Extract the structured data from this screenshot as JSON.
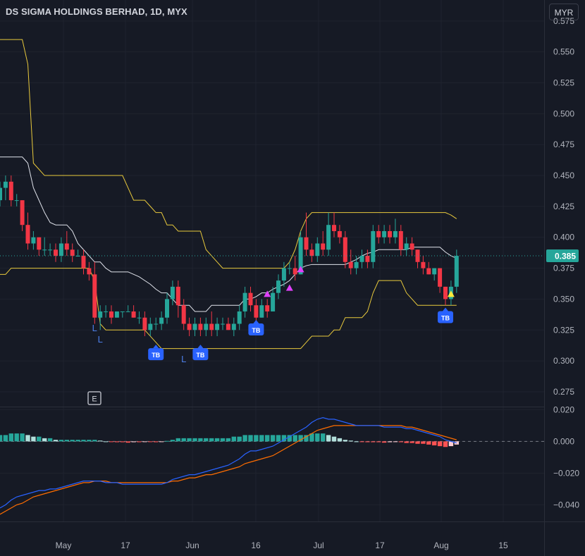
{
  "header": {
    "title": "DS SIGMA HOLDINGS BERHAD, 1D, MYX",
    "currency_label": "MYR"
  },
  "last_price": {
    "label": "0.385",
    "value": 0.385,
    "color": "#26a69a"
  },
  "earnings_marker": "E",
  "chart_data": [
    {
      "type": "candlestick",
      "title": "DS SIGMA HOLDINGS BERHAD, 1D, MYX",
      "x_tick_labels": [
        "May",
        "17",
        "Jun",
        "16",
        "Jul",
        "17",
        "Aug",
        "15"
      ],
      "y_ticks": [
        0.575,
        0.55,
        0.525,
        0.5,
        0.475,
        0.45,
        0.425,
        0.4,
        0.375,
        0.35,
        0.325,
        0.3,
        0.275
      ],
      "y_tick_labels": [
        "0.575",
        "0.550",
        "0.525",
        "0.500",
        "0.475",
        "0.450",
        "0.425",
        "0.400",
        "0.375",
        "0.350",
        "0.325",
        "0.300",
        "0.275"
      ],
      "ylim": [
        0.263,
        0.592
      ],
      "colors": {
        "up": "#26a69a",
        "down": "#f23645",
        "upper_band": "#e8c93c",
        "lower_band": "#e8c93c",
        "middle_line": "#e0e3eb"
      },
      "ohlc": [
        [
          0.43,
          0.445,
          0.425,
          0.44
        ],
        [
          0.44,
          0.45,
          0.43,
          0.445
        ],
        [
          0.445,
          0.45,
          0.425,
          0.43
        ],
        [
          0.43,
          0.435,
          0.425,
          0.43
        ],
        [
          0.43,
          0.43,
          0.405,
          0.41
        ],
        [
          0.41,
          0.42,
          0.39,
          0.395
        ],
        [
          0.395,
          0.405,
          0.39,
          0.4
        ],
        [
          0.4,
          0.4,
          0.385,
          0.39
        ],
        [
          0.39,
          0.4,
          0.385,
          0.39
        ],
        [
          0.39,
          0.395,
          0.385,
          0.39
        ],
        [
          0.39,
          0.395,
          0.38,
          0.385
        ],
        [
          0.385,
          0.4,
          0.38,
          0.395
        ],
        [
          0.395,
          0.405,
          0.385,
          0.39
        ],
        [
          0.39,
          0.395,
          0.38,
          0.385
        ],
        [
          0.385,
          0.39,
          0.385,
          0.385
        ],
        [
          0.385,
          0.39,
          0.37,
          0.375
        ],
        [
          0.375,
          0.38,
          0.365,
          0.37
        ],
        [
          0.37,
          0.38,
          0.33,
          0.335
        ],
        [
          0.335,
          0.345,
          0.325,
          0.34
        ],
        [
          0.34,
          0.345,
          0.335,
          0.34
        ],
        [
          0.34,
          0.345,
          0.33,
          0.335
        ],
        [
          0.335,
          0.34,
          0.335,
          0.34
        ],
        [
          0.34,
          0.34,
          0.335,
          0.34
        ],
        [
          0.34,
          0.345,
          0.34,
          0.34
        ],
        [
          0.34,
          0.345,
          0.335,
          0.335
        ],
        [
          0.335,
          0.34,
          0.33,
          0.335
        ],
        [
          0.335,
          0.34,
          0.32,
          0.325
        ],
        [
          0.325,
          0.335,
          0.32,
          0.33
        ],
        [
          0.33,
          0.335,
          0.325,
          0.33
        ],
        [
          0.33,
          0.34,
          0.325,
          0.335
        ],
        [
          0.335,
          0.355,
          0.33,
          0.35
        ],
        [
          0.35,
          0.365,
          0.345,
          0.36
        ],
        [
          0.36,
          0.365,
          0.335,
          0.345
        ],
        [
          0.345,
          0.35,
          0.325,
          0.33
        ],
        [
          0.33,
          0.335,
          0.32,
          0.325
        ],
        [
          0.325,
          0.335,
          0.32,
          0.33
        ],
        [
          0.33,
          0.335,
          0.32,
          0.325
        ],
        [
          0.325,
          0.335,
          0.32,
          0.33
        ],
        [
          0.33,
          0.34,
          0.32,
          0.325
        ],
        [
          0.325,
          0.335,
          0.32,
          0.33
        ],
        [
          0.33,
          0.335,
          0.325,
          0.33
        ],
        [
          0.33,
          0.335,
          0.325,
          0.325
        ],
        [
          0.325,
          0.335,
          0.32,
          0.33
        ],
        [
          0.33,
          0.345,
          0.325,
          0.34
        ],
        [
          0.34,
          0.36,
          0.335,
          0.355
        ],
        [
          0.355,
          0.36,
          0.34,
          0.345
        ],
        [
          0.345,
          0.35,
          0.33,
          0.335
        ],
        [
          0.335,
          0.35,
          0.335,
          0.345
        ],
        [
          0.345,
          0.35,
          0.335,
          0.34
        ],
        [
          0.34,
          0.36,
          0.34,
          0.355
        ],
        [
          0.355,
          0.37,
          0.35,
          0.365
        ],
        [
          0.365,
          0.38,
          0.36,
          0.375
        ],
        [
          0.375,
          0.38,
          0.37,
          0.375
        ],
        [
          0.375,
          0.385,
          0.365,
          0.37
        ],
        [
          0.37,
          0.405,
          0.37,
          0.4
        ],
        [
          0.4,
          0.42,
          0.385,
          0.39
        ],
        [
          0.39,
          0.395,
          0.38,
          0.385
        ],
        [
          0.385,
          0.4,
          0.38,
          0.395
        ],
        [
          0.395,
          0.405,
          0.385,
          0.39
        ],
        [
          0.39,
          0.42,
          0.385,
          0.41
        ],
        [
          0.41,
          0.42,
          0.4,
          0.405
        ],
        [
          0.405,
          0.41,
          0.395,
          0.4
        ],
        [
          0.4,
          0.405,
          0.375,
          0.38
        ],
        [
          0.38,
          0.39,
          0.37,
          0.375
        ],
        [
          0.375,
          0.385,
          0.37,
          0.38
        ],
        [
          0.38,
          0.39,
          0.375,
          0.385
        ],
        [
          0.385,
          0.39,
          0.375,
          0.38
        ],
        [
          0.38,
          0.41,
          0.375,
          0.405
        ],
        [
          0.405,
          0.41,
          0.395,
          0.4
        ],
        [
          0.4,
          0.41,
          0.395,
          0.405
        ],
        [
          0.405,
          0.41,
          0.395,
          0.4
        ],
        [
          0.4,
          0.415,
          0.395,
          0.405
        ],
        [
          0.405,
          0.41,
          0.385,
          0.39
        ],
        [
          0.39,
          0.4,
          0.385,
          0.395
        ],
        [
          0.395,
          0.4,
          0.385,
          0.39
        ],
        [
          0.39,
          0.39,
          0.375,
          0.38
        ],
        [
          0.38,
          0.385,
          0.37,
          0.375
        ],
        [
          0.375,
          0.38,
          0.37,
          0.37
        ],
        [
          0.37,
          0.375,
          0.365,
          0.375
        ],
        [
          0.375,
          0.375,
          0.355,
          0.36
        ],
        [
          0.36,
          0.36,
          0.345,
          0.35
        ],
        [
          0.35,
          0.365,
          0.345,
          0.36
        ],
        [
          0.36,
          0.39,
          0.355,
          0.385
        ]
      ],
      "upper_band": [
        0.56,
        0.56,
        0.56,
        0.56,
        0.56,
        0.54,
        0.46,
        0.455,
        0.45,
        0.45,
        0.45,
        0.45,
        0.45,
        0.45,
        0.45,
        0.45,
        0.45,
        0.45,
        0.45,
        0.45,
        0.45,
        0.45,
        0.45,
        0.44,
        0.43,
        0.43,
        0.43,
        0.425,
        0.42,
        0.42,
        0.41,
        0.41,
        0.405,
        0.405,
        0.405,
        0.405,
        0.405,
        0.39,
        0.385,
        0.38,
        0.375,
        0.375,
        0.375,
        0.375,
        0.375,
        0.375,
        0.375,
        0.375,
        0.375,
        0.375,
        0.375,
        0.375,
        0.38,
        0.39,
        0.405,
        0.415,
        0.42,
        0.42,
        0.42,
        0.42,
        0.42,
        0.42,
        0.42,
        0.42,
        0.42,
        0.42,
        0.42,
        0.42,
        0.42,
        0.42,
        0.42,
        0.42,
        0.42,
        0.42,
        0.42,
        0.42,
        0.42,
        0.42,
        0.42,
        0.42,
        0.42,
        0.418,
        0.415
      ],
      "middle_line": [
        0.465,
        0.465,
        0.465,
        0.465,
        0.465,
        0.46,
        0.44,
        0.43,
        0.42,
        0.412,
        0.41,
        0.41,
        0.41,
        0.405,
        0.395,
        0.39,
        0.385,
        0.38,
        0.38,
        0.375,
        0.372,
        0.372,
        0.372,
        0.372,
        0.37,
        0.368,
        0.365,
        0.362,
        0.358,
        0.355,
        0.355,
        0.35,
        0.345,
        0.345,
        0.345,
        0.34,
        0.34,
        0.34,
        0.345,
        0.345,
        0.345,
        0.345,
        0.345,
        0.345,
        0.35,
        0.35,
        0.352,
        0.355,
        0.355,
        0.358,
        0.36,
        0.362,
        0.365,
        0.37,
        0.375,
        0.377,
        0.378,
        0.378,
        0.378,
        0.378,
        0.378,
        0.378,
        0.378,
        0.38,
        0.382,
        0.385,
        0.387,
        0.388,
        0.39,
        0.39,
        0.39,
        0.39,
        0.39,
        0.39,
        0.392,
        0.392,
        0.392,
        0.392,
        0.392,
        0.392,
        0.388,
        0.385,
        0.383
      ],
      "lower_band": [
        0.37,
        0.37,
        0.375,
        0.375,
        0.375,
        0.375,
        0.375,
        0.375,
        0.375,
        0.375,
        0.375,
        0.375,
        0.375,
        0.375,
        0.375,
        0.375,
        0.375,
        0.365,
        0.33,
        0.325,
        0.325,
        0.325,
        0.325,
        0.325,
        0.325,
        0.325,
        0.325,
        0.32,
        0.315,
        0.31,
        0.31,
        0.31,
        0.31,
        0.31,
        0.31,
        0.31,
        0.31,
        0.31,
        0.31,
        0.31,
        0.31,
        0.31,
        0.31,
        0.31,
        0.31,
        0.31,
        0.31,
        0.31,
        0.31,
        0.31,
        0.31,
        0.31,
        0.31,
        0.31,
        0.31,
        0.315,
        0.32,
        0.32,
        0.32,
        0.32,
        0.325,
        0.325,
        0.335,
        0.335,
        0.335,
        0.335,
        0.34,
        0.355,
        0.365,
        0.365,
        0.365,
        0.365,
        0.365,
        0.355,
        0.35,
        0.345,
        0.345,
        0.345,
        0.345,
        0.345,
        0.345,
        0.345,
        0.345
      ],
      "annotations": [
        {
          "text": "L",
          "kind": "pivot-label",
          "bar": 17,
          "price": 0.324
        },
        {
          "text": "L",
          "kind": "pivot-label",
          "bar": 18,
          "price": 0.315
        },
        {
          "text": "L",
          "kind": "pivot-label",
          "bar": 33,
          "price": 0.299
        },
        {
          "text": "TB",
          "kind": "signal-badge",
          "bar": 28,
          "price": 0.304
        },
        {
          "text": "TB",
          "kind": "signal-badge",
          "bar": 36,
          "price": 0.304
        },
        {
          "text": "TB",
          "kind": "signal-badge",
          "bar": 46,
          "price": 0.324
        },
        {
          "text": "TB",
          "kind": "signal-badge",
          "bar": 80,
          "price": 0.334
        },
        {
          "kind": "triangle-up",
          "color": "#e040fb",
          "bar": 48,
          "price": 0.354
        },
        {
          "kind": "triangle-up",
          "color": "#e040fb",
          "bar": 52,
          "price": 0.359
        },
        {
          "kind": "triangle-up",
          "color": "#e040fb",
          "bar": 54,
          "price": 0.374
        },
        {
          "kind": "triangle-up",
          "color": "#ffeb3b",
          "bar": 81,
          "price": 0.354
        }
      ]
    },
    {
      "type": "macd",
      "y_ticks": [
        0.02,
        0.0,
        -0.02,
        -0.04
      ],
      "y_tick_labels": [
        "0.020",
        "0.000",
        "−0.020",
        "−0.040"
      ],
      "ylim": [
        -0.0505,
        0.0215
      ],
      "colors": {
        "macd": "#2962ff",
        "signal": "#ff6d00",
        "hist_pos_strong": "#26a69a",
        "hist_pos_weak": "#b2dfdb",
        "hist_neg_strong": "#ff5252",
        "hist_neg_weak": "#ffcdd2"
      },
      "macd": [
        -0.042,
        -0.04,
        -0.037,
        -0.035,
        -0.034,
        -0.033,
        -0.032,
        -0.031,
        -0.031,
        -0.03,
        -0.03,
        -0.029,
        -0.028,
        -0.027,
        -0.026,
        -0.025,
        -0.025,
        -0.025,
        -0.025,
        -0.026,
        -0.026,
        -0.026,
        -0.027,
        -0.027,
        -0.027,
        -0.027,
        -0.027,
        -0.027,
        -0.027,
        -0.027,
        -0.026,
        -0.024,
        -0.023,
        -0.022,
        -0.021,
        -0.021,
        -0.02,
        -0.019,
        -0.018,
        -0.017,
        -0.016,
        -0.015,
        -0.013,
        -0.011,
        -0.008,
        -0.006,
        -0.006,
        -0.005,
        -0.004,
        -0.003,
        -0.001,
        0.001,
        0.003,
        0.005,
        0.007,
        0.009,
        0.012,
        0.014,
        0.015,
        0.014,
        0.014,
        0.013,
        0.012,
        0.011,
        0.01,
        0.01,
        0.01,
        0.01,
        0.01,
        0.009,
        0.009,
        0.009,
        0.009,
        0.008,
        0.008,
        0.007,
        0.006,
        0.005,
        0.004,
        0.003,
        0.001,
        0.0,
        -0.001
      ],
      "signal": [
        -0.046,
        -0.044,
        -0.042,
        -0.04,
        -0.039,
        -0.037,
        -0.035,
        -0.034,
        -0.033,
        -0.032,
        -0.031,
        -0.03,
        -0.029,
        -0.028,
        -0.027,
        -0.026,
        -0.026,
        -0.025,
        -0.025,
        -0.025,
        -0.026,
        -0.026,
        -0.026,
        -0.026,
        -0.026,
        -0.026,
        -0.026,
        -0.026,
        -0.026,
        -0.026,
        -0.026,
        -0.025,
        -0.025,
        -0.024,
        -0.023,
        -0.023,
        -0.022,
        -0.021,
        -0.021,
        -0.02,
        -0.019,
        -0.018,
        -0.017,
        -0.016,
        -0.014,
        -0.013,
        -0.012,
        -0.011,
        -0.01,
        -0.009,
        -0.007,
        -0.005,
        -0.003,
        -0.001,
        0.001,
        0.003,
        0.005,
        0.007,
        0.008,
        0.009,
        0.01,
        0.01,
        0.01,
        0.01,
        0.01,
        0.01,
        0.01,
        0.01,
        0.01,
        0.01,
        0.01,
        0.01,
        0.01,
        0.009,
        0.009,
        0.008,
        0.007,
        0.006,
        0.005,
        0.004,
        0.003,
        0.002,
        0.001
      ],
      "histogram": [
        0.004,
        0.004,
        0.005,
        0.005,
        0.005,
        0.004,
        0.003,
        0.003,
        0.002,
        0.002,
        0.001,
        0.001,
        0.001,
        0.001,
        0.001,
        0.001,
        0.001,
        0.001,
        0.0005,
        0.0,
        -0.0003,
        -0.0005,
        -0.0005,
        -0.0008,
        -0.0005,
        -0.0005,
        -0.0003,
        -0.0003,
        -0.0005,
        -0.0003,
        0.0003,
        0.001,
        0.002,
        0.002,
        0.002,
        0.002,
        0.002,
        0.002,
        0.002,
        0.002,
        0.002,
        0.002,
        0.003,
        0.003,
        0.004,
        0.004,
        0.004,
        0.004,
        0.004,
        0.004,
        0.004,
        0.004,
        0.004,
        0.004,
        0.004,
        0.004,
        0.005,
        0.005,
        0.005,
        0.004,
        0.003,
        0.002,
        0.001,
        0.0005,
        0.0,
        -0.0003,
        -0.0005,
        -0.0005,
        -0.0005,
        -0.0008,
        -0.0005,
        -0.0003,
        -0.0005,
        -0.001,
        -0.001,
        -0.0015,
        -0.0015,
        -0.002,
        -0.0025,
        -0.003,
        -0.0035,
        -0.003,
        -0.002
      ]
    }
  ]
}
